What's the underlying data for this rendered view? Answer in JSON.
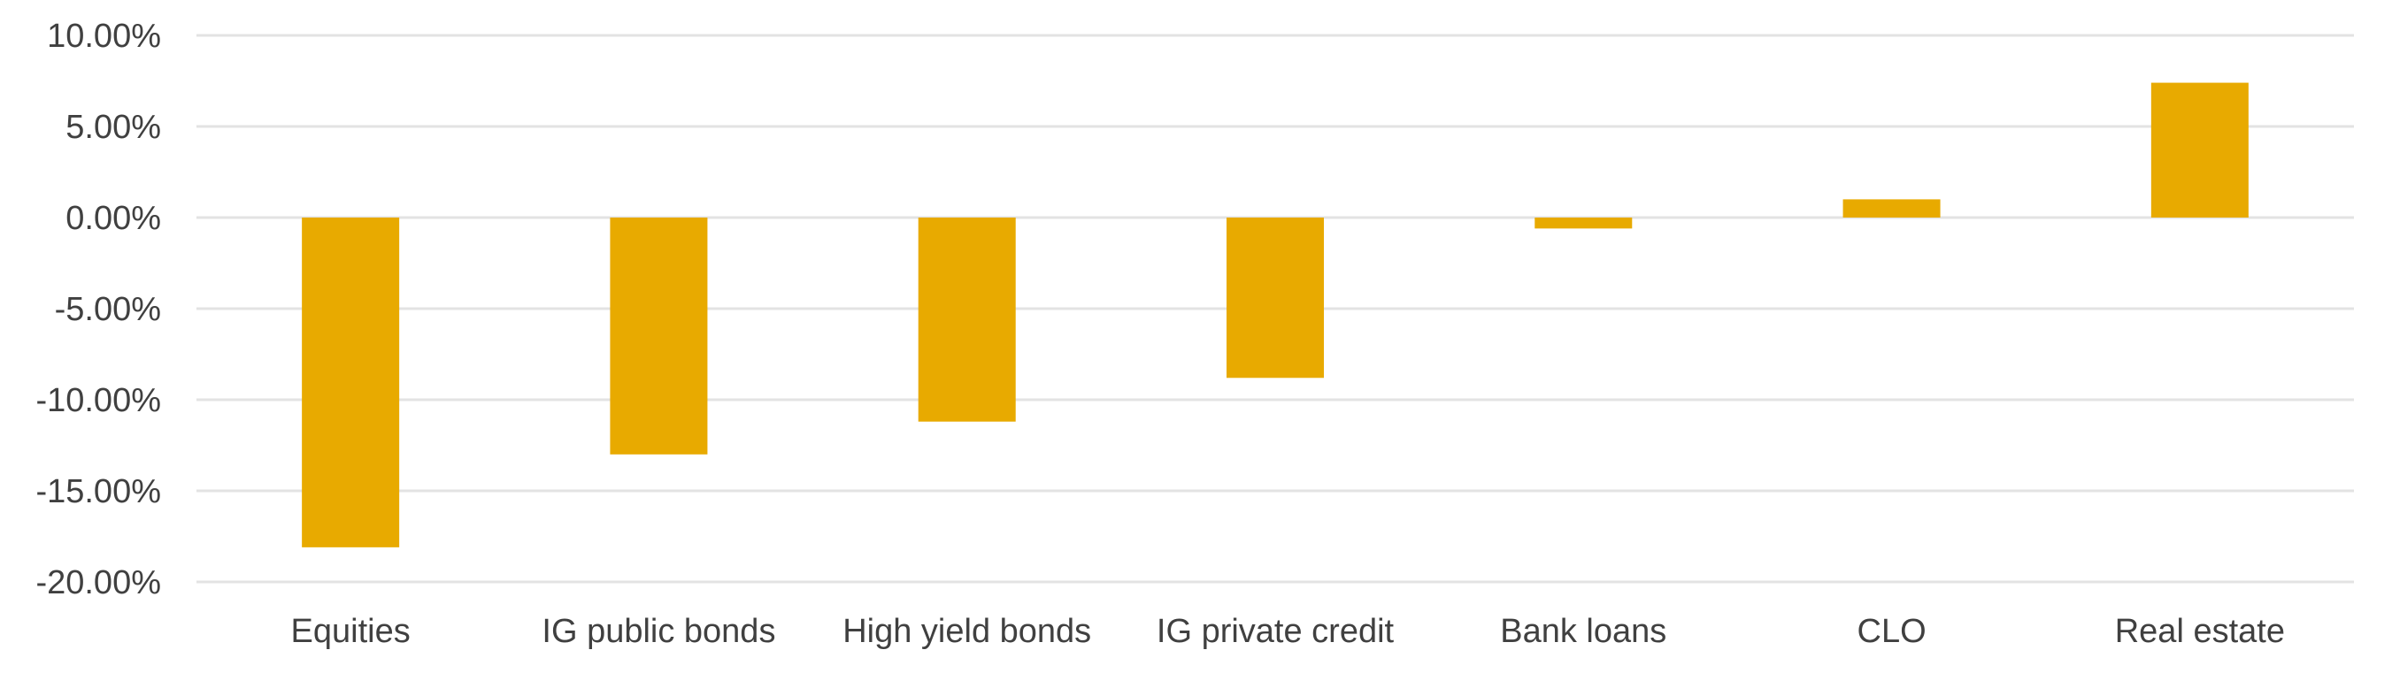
{
  "chart_data": {
    "type": "bar",
    "categories": [
      "Equities",
      "IG public bonds",
      "High yield bonds",
      "IG private credit",
      "Bank loans",
      "CLO",
      "Real estate"
    ],
    "values": [
      -18.1,
      -13.0,
      -11.2,
      -8.8,
      -0.6,
      1.0,
      7.4
    ],
    "yticks": [
      "10.00%",
      "5.00%",
      "0.00%",
      "-5.00%",
      "-10.00%",
      "-15.00%",
      "-20.00%"
    ],
    "ytick_values": [
      10,
      5,
      0,
      -5,
      -10,
      -15,
      -20
    ],
    "ylim": [
      -20,
      10
    ],
    "title": "",
    "xlabel": "",
    "ylabel": "",
    "grid": true,
    "legend": "none",
    "colors": {
      "bar": "#E8AA00",
      "grid": "#E3E3E3",
      "text": "#404040"
    }
  }
}
